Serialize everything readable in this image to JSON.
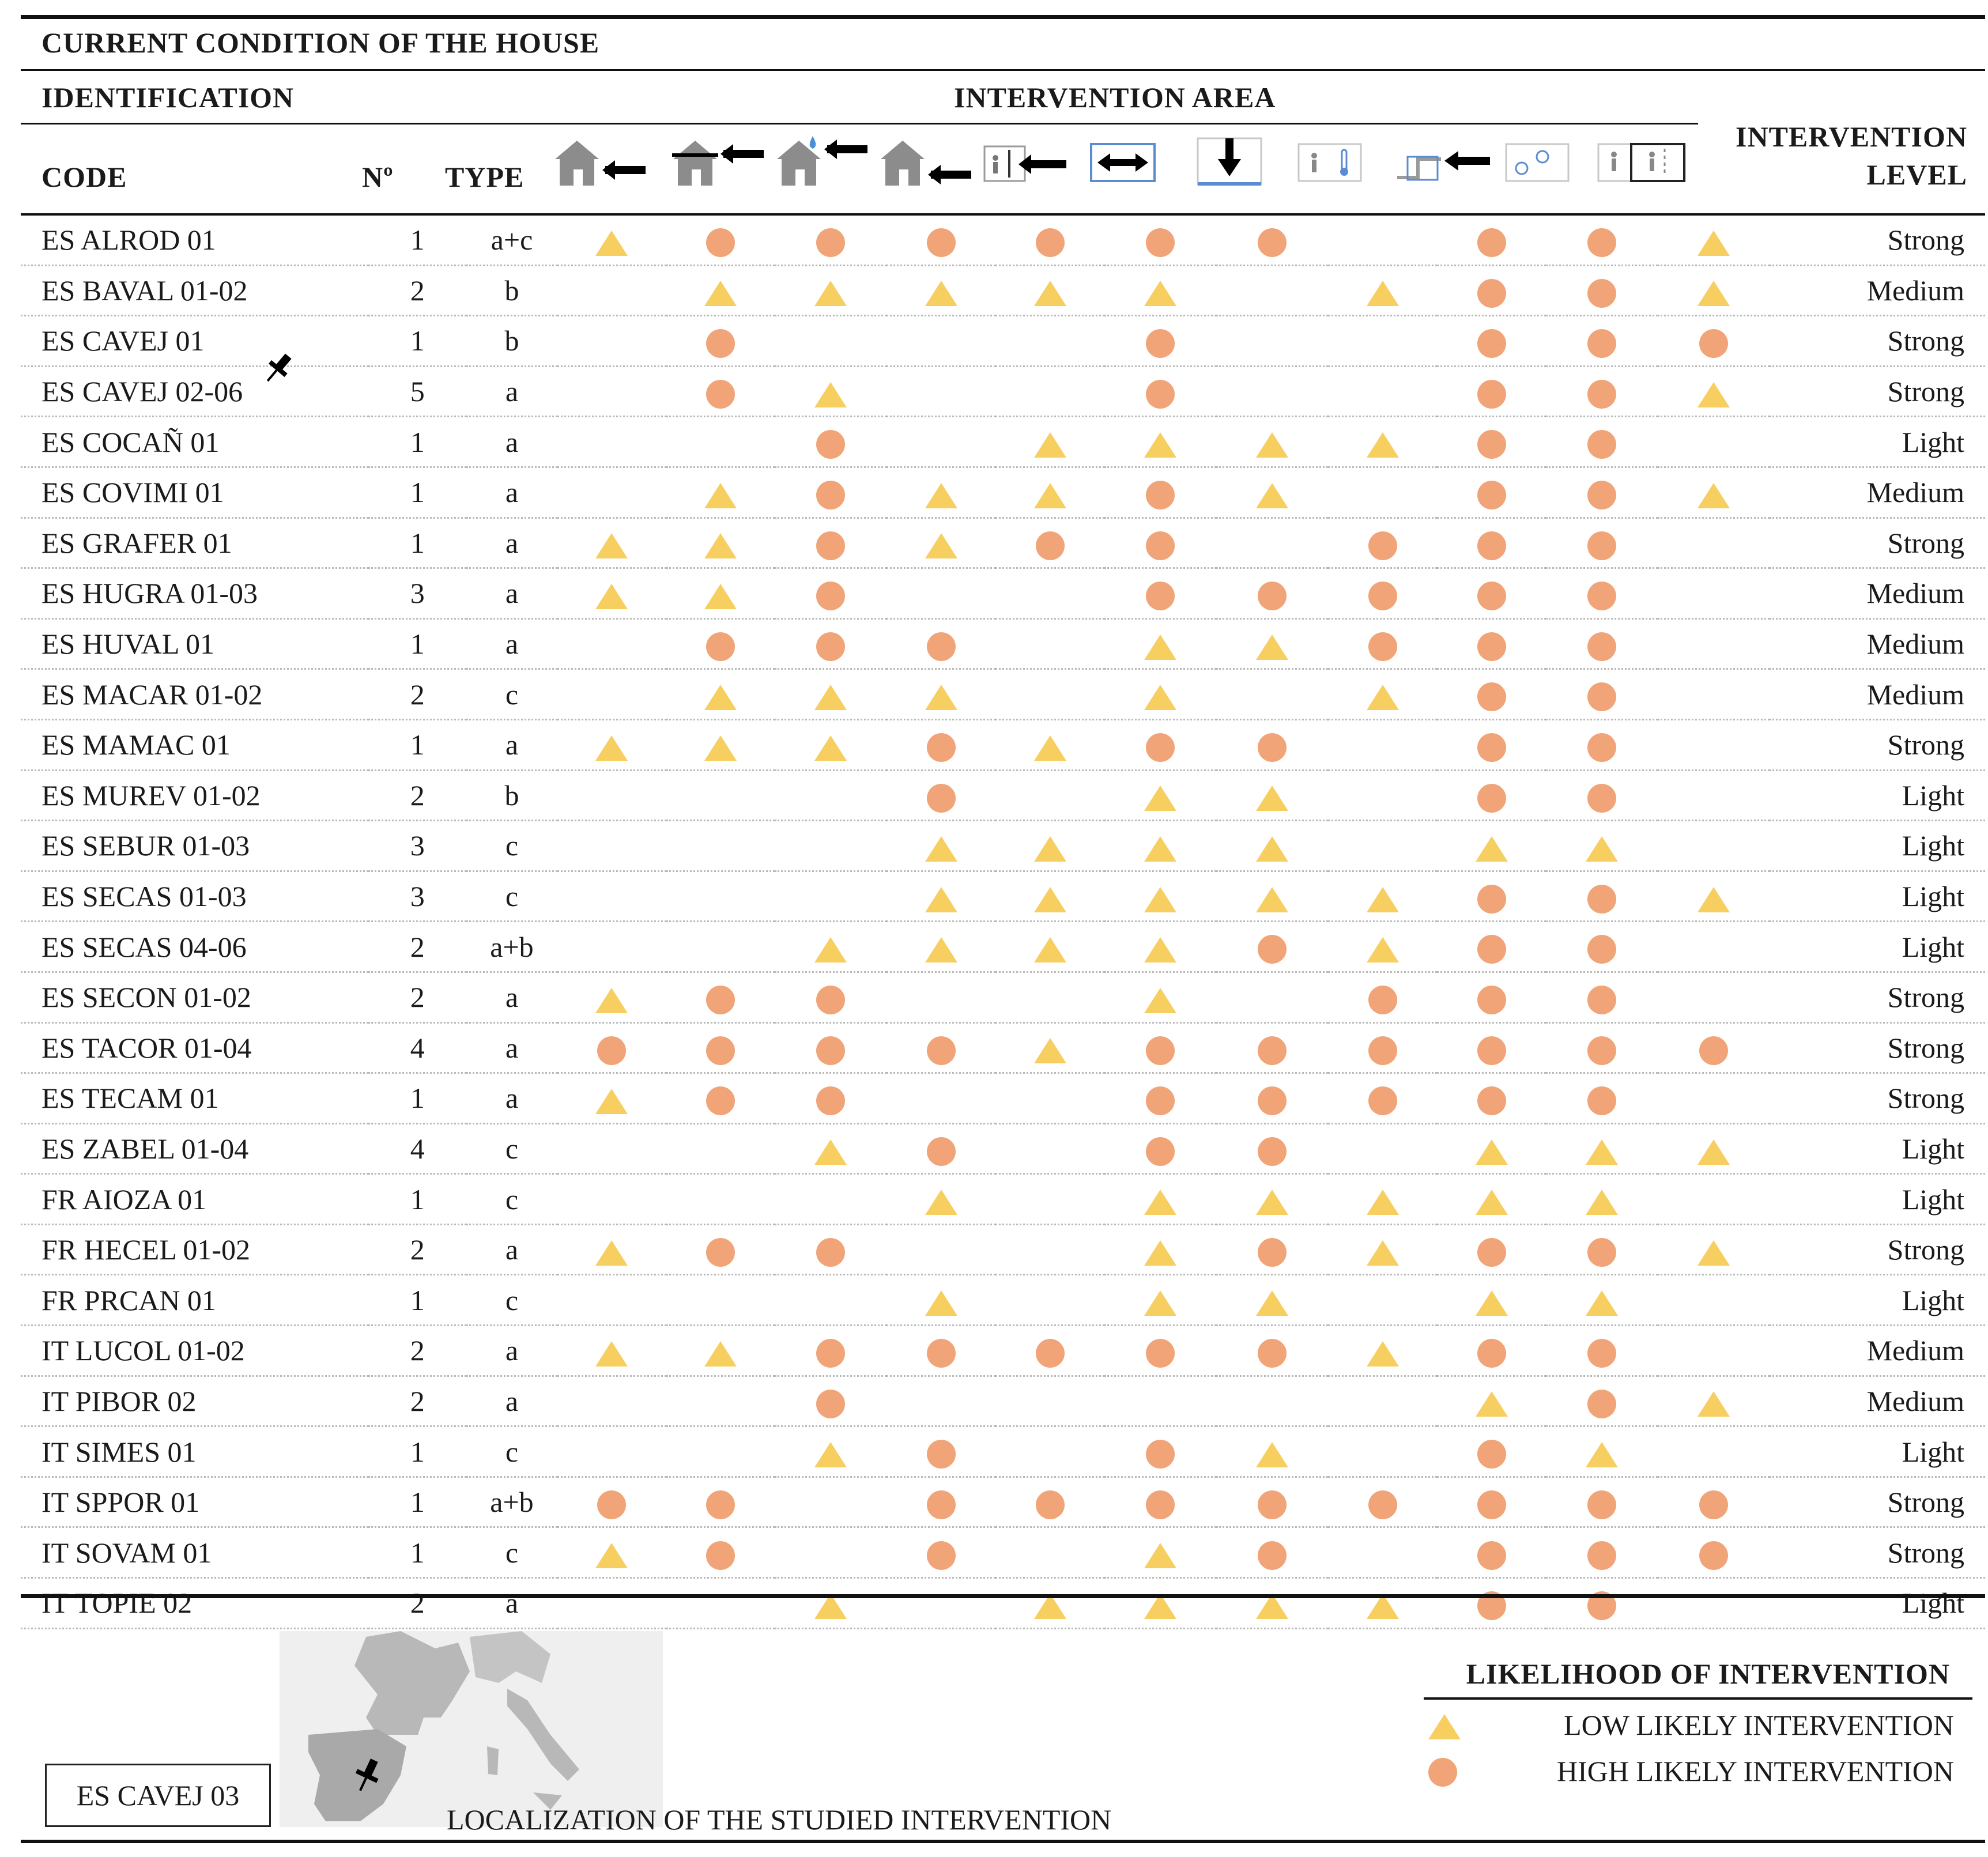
{
  "title": "CURRENT CONDITION OF THE HOUSE",
  "headers": {
    "identification": "IDENTIFICATION",
    "intervention_area": "INTERVENTION AREA",
    "code": "CODE",
    "number": "Nº",
    "type": "TYPE",
    "intervention_level_line1": "INTERVENTION",
    "intervention_level_line2": "LEVEL"
  },
  "area_icons": [
    "house-wall-icon",
    "house-roof-icon",
    "house-roof-water-icon",
    "house-floor-icon",
    "partition-wall-icon",
    "horizontal-expand-icon",
    "vertical-load-icon",
    "thermal-comfort-icon",
    "installations-icon",
    "sanitation-icon",
    "room-layout-icon"
  ],
  "symbols": {
    "L": "low",
    "H": "high"
  },
  "colors": {
    "low": "#f7cf60",
    "high": "#f0a478"
  },
  "rows": [
    {
      "code": "ES ALROD 01",
      "num": "1",
      "type": "a+c",
      "areas": [
        "L",
        "H",
        "H",
        "H",
        "H",
        "H",
        "H",
        "",
        "H",
        "H",
        "L"
      ],
      "level": "Strong"
    },
    {
      "code": "ES BAVAL 01-02",
      "num": "2",
      "type": "b",
      "areas": [
        "",
        "L",
        "L",
        "L",
        "L",
        "L",
        "",
        "L",
        "H",
        "H",
        "L"
      ],
      "level": "Medium"
    },
    {
      "code": "ES CAVEJ 01",
      "num": "1",
      "type": "b",
      "areas": [
        "",
        "H",
        "",
        "",
        "",
        "H",
        "",
        "",
        "H",
        "H",
        "H"
      ],
      "level": "Strong"
    },
    {
      "code": "ES CAVEJ 02-06",
      "num": "5",
      "type": "a",
      "areas": [
        "",
        "H",
        "L",
        "",
        "",
        "H",
        "",
        "",
        "H",
        "H",
        "L"
      ],
      "level": "Strong"
    },
    {
      "code": "ES COCAÑ 01",
      "num": "1",
      "type": "a",
      "areas": [
        "",
        "",
        "H",
        "",
        "L",
        "L",
        "L",
        "L",
        "H",
        "H",
        ""
      ],
      "level": "Light"
    },
    {
      "code": "ES COVIMI 01",
      "num": "1",
      "type": "a",
      "areas": [
        "",
        "L",
        "H",
        "L",
        "L",
        "H",
        "L",
        "",
        "H",
        "H",
        "L"
      ],
      "level": "Medium"
    },
    {
      "code": "ES GRAFER 01",
      "num": "1",
      "type": "a",
      "areas": [
        "L",
        "L",
        "H",
        "L",
        "H",
        "H",
        "",
        "H",
        "H",
        "H",
        ""
      ],
      "level": "Strong"
    },
    {
      "code": "ES HUGRA 01-03",
      "num": "3",
      "type": "a",
      "areas": [
        "L",
        "L",
        "H",
        "",
        "",
        "H",
        "H",
        "H",
        "H",
        "H",
        ""
      ],
      "level": "Medium"
    },
    {
      "code": "ES HUVAL 01",
      "num": "1",
      "type": "a",
      "areas": [
        "",
        "H",
        "H",
        "H",
        "",
        "L",
        "L",
        "H",
        "H",
        "H",
        ""
      ],
      "level": "Medium"
    },
    {
      "code": "ES MACAR 01-02",
      "num": "2",
      "type": "c",
      "areas": [
        "",
        "L",
        "L",
        "L",
        "",
        "L",
        "",
        "L",
        "H",
        "H",
        ""
      ],
      "level": "Medium"
    },
    {
      "code": "ES MAMAC 01",
      "num": "1",
      "type": "a",
      "areas": [
        "L",
        "L",
        "L",
        "H",
        "L",
        "H",
        "H",
        "",
        "H",
        "H",
        ""
      ],
      "level": "Strong"
    },
    {
      "code": "ES MUREV 01-02",
      "num": "2",
      "type": "b",
      "areas": [
        "",
        "",
        "",
        "H",
        "",
        "L",
        "L",
        "",
        "H",
        "H",
        ""
      ],
      "level": "Light"
    },
    {
      "code": "ES SEBUR 01-03",
      "num": "3",
      "type": "c",
      "areas": [
        "",
        "",
        "",
        "L",
        "L",
        "L",
        "L",
        "",
        "L",
        "L",
        ""
      ],
      "level": "Light"
    },
    {
      "code": "ES SECAS 01-03",
      "num": "3",
      "type": "c",
      "areas": [
        "",
        "",
        "",
        "L",
        "L",
        "L",
        "L",
        "L",
        "H",
        "H",
        "L"
      ],
      "level": "Light"
    },
    {
      "code": "ES SECAS 04-06",
      "num": "2",
      "type": "a+b",
      "areas": [
        "",
        "",
        "L",
        "L",
        "L",
        "L",
        "H",
        "L",
        "H",
        "H",
        ""
      ],
      "level": "Light"
    },
    {
      "code": "ES SECON 01-02",
      "num": "2",
      "type": "a",
      "areas": [
        "L",
        "H",
        "H",
        "",
        "",
        "L",
        "",
        "H",
        "H",
        "H",
        ""
      ],
      "level": "Strong"
    },
    {
      "code": "ES TACOR 01-04",
      "num": "4",
      "type": "a",
      "areas": [
        "H",
        "H",
        "H",
        "H",
        "L",
        "H",
        "H",
        "H",
        "H",
        "H",
        "H"
      ],
      "level": "Strong"
    },
    {
      "code": "ES TECAM 01",
      "num": "1",
      "type": "a",
      "areas": [
        "L",
        "H",
        "H",
        "",
        "",
        "H",
        "H",
        "H",
        "H",
        "H",
        ""
      ],
      "level": "Strong"
    },
    {
      "code": "ES ZABEL 01-04",
      "num": "4",
      "type": "c",
      "areas": [
        "",
        "",
        "L",
        "H",
        "",
        "H",
        "H",
        "",
        "L",
        "L",
        "L"
      ],
      "level": "Light"
    },
    {
      "code": "FR AIOZA 01",
      "num": "1",
      "type": "c",
      "areas": [
        "",
        "",
        "",
        "L",
        "",
        "L",
        "L",
        "L",
        "L",
        "L",
        ""
      ],
      "level": "Light"
    },
    {
      "code": "FR HECEL 01-02",
      "num": "2",
      "type": "a",
      "areas": [
        "L",
        "H",
        "H",
        "",
        "",
        "L",
        "H",
        "L",
        "H",
        "H",
        "L"
      ],
      "level": "Strong"
    },
    {
      "code": "FR PRCAN 01",
      "num": "1",
      "type": "c",
      "areas": [
        "",
        "",
        "",
        "L",
        "",
        "L",
        "L",
        "",
        "L",
        "L",
        ""
      ],
      "level": "Light"
    },
    {
      "code": "IT LUCOL 01-02",
      "num": "2",
      "type": "a",
      "areas": [
        "L",
        "L",
        "H",
        "H",
        "H",
        "H",
        "H",
        "L",
        "H",
        "H",
        ""
      ],
      "level": "Medium"
    },
    {
      "code": "IT PIBOR 02",
      "num": "2",
      "type": "a",
      "areas": [
        "",
        "",
        "H",
        "",
        "",
        "",
        "",
        "",
        "L",
        "H",
        "L"
      ],
      "level": "Medium"
    },
    {
      "code": "IT SIMES 01",
      "num": "1",
      "type": "c",
      "areas": [
        "",
        "",
        "L",
        "H",
        "",
        "H",
        "L",
        "",
        "H",
        "L",
        ""
      ],
      "level": "Light"
    },
    {
      "code": "IT SPPOR 01",
      "num": "1",
      "type": "a+b",
      "areas": [
        "H",
        "H",
        "",
        "H",
        "H",
        "H",
        "H",
        "H",
        "H",
        "H",
        "H"
      ],
      "level": "Strong"
    },
    {
      "code": "IT SOVAM 01",
      "num": "1",
      "type": "c",
      "areas": [
        "L",
        "H",
        "",
        "H",
        "",
        "L",
        "H",
        "",
        "H",
        "H",
        "H"
      ],
      "level": "Strong"
    },
    {
      "code": "IT TOPIE 02",
      "num": "2",
      "type": "a",
      "areas": [
        "",
        "",
        "L",
        "",
        "L",
        "L",
        "L",
        "L",
        "H",
        "H",
        ""
      ],
      "level": "Light"
    }
  ],
  "footer": {
    "selected_code": "ES CAVEJ 03",
    "map_caption": "LOCALIZATION OF THE STUDIED INTERVENTION",
    "legend_title": "LIKELIHOOD OF INTERVENTION",
    "legend_low": "LOW LIKELY INTERVENTION",
    "legend_high": "HIGH LIKELY INTERVENTION"
  }
}
